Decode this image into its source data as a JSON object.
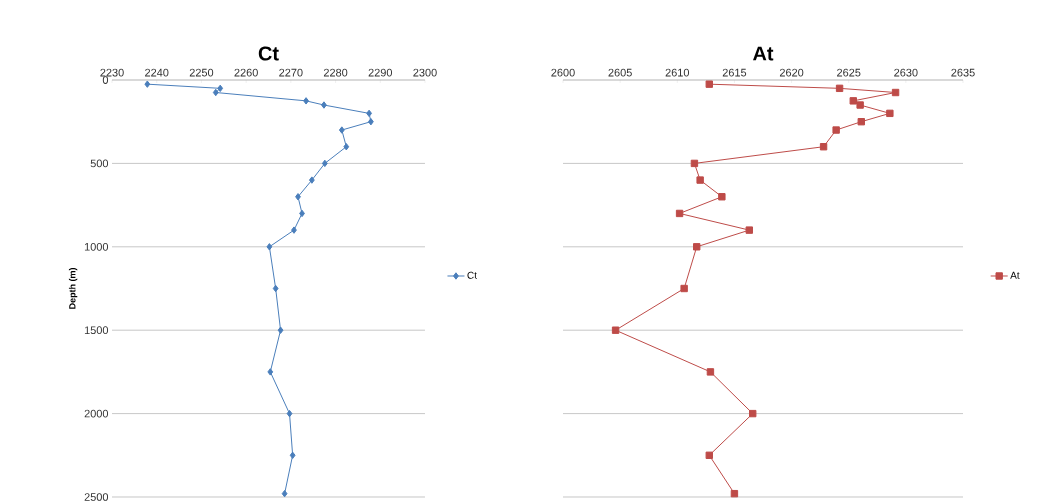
{
  "chart_data": [
    {
      "type": "line",
      "title": "Ct",
      "ylabel": "Depth (m)",
      "xlim": [
        2230,
        2300
      ],
      "xticks": [
        2230,
        2240,
        2250,
        2260,
        2270,
        2280,
        2290,
        2300
      ],
      "ylim": [
        2500,
        0
      ],
      "yticks": [
        0,
        500,
        1000,
        1500,
        2000,
        2500
      ],
      "grid": "y",
      "legend": "right",
      "marker": "diamond",
      "line_style": "solid",
      "series": [
        {
          "name": "Ct",
          "color": "#4a7ebb",
          "x": [
            2237.9,
            2254.2,
            2253.2,
            2273.4,
            2277.4,
            2287.5,
            2287.9,
            2281.4,
            2282.4,
            2277.6,
            2274.7,
            2271.6,
            2272.5,
            2270.7,
            2265.2,
            2266.6,
            2267.7,
            2265.4,
            2269.7,
            2270.4,
            2268.6
          ],
          "values": [
            25,
            50,
            75,
            125,
            150,
            200,
            250,
            300,
            400,
            500,
            600,
            700,
            800,
            900,
            1000,
            1250,
            1500,
            1750,
            2000,
            2250,
            2480
          ]
        }
      ]
    },
    {
      "type": "line",
      "title": "At",
      "xlim": [
        2600,
        2635
      ],
      "xticks": [
        2600,
        2605,
        2610,
        2615,
        2620,
        2625,
        2630,
        2635
      ],
      "ylim": [
        2500,
        0
      ],
      "yticks": [
        0,
        500,
        1000,
        1500,
        2000,
        2500
      ],
      "grid": "y",
      "legend": "right",
      "marker": "square",
      "line_style": "solid",
      "tick_labels": "x",
      "series": [
        {
          "name": "At",
          "color": "#be4b48",
          "x": [
            2612.8,
            2624.2,
            2629.1,
            2625.4,
            2626.0,
            2628.6,
            2626.1,
            2623.9,
            2622.8,
            2611.5,
            2612.0,
            2613.9,
            2610.2,
            2616.3,
            2611.7,
            2610.6,
            2604.6,
            2612.9,
            2616.6,
            2612.8,
            2615.0
          ],
          "values": [
            25,
            50,
            75,
            125,
            150,
            200,
            250,
            300,
            400,
            500,
            600,
            700,
            800,
            900,
            1000,
            1250,
            1500,
            1750,
            2000,
            2250,
            2480
          ]
        }
      ]
    }
  ]
}
